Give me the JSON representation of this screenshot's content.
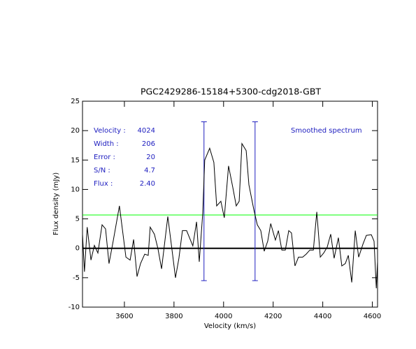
{
  "chart_data": {
    "type": "line",
    "title": "PGC2429286-15184+5300-cdg2018-GBT",
    "x_label": "Velocity (km/s)",
    "y_label": "Flux density (mJy)",
    "x": [
      3431,
      3439,
      3450,
      3465,
      3479,
      3493,
      3510,
      3524,
      3538,
      3555,
      3580,
      3606,
      3623,
      3637,
      3651,
      3665,
      3682,
      3696,
      3704,
      3721,
      3735,
      3750,
      3775,
      3789,
      3806,
      3820,
      3834,
      3851,
      3876,
      3891,
      3902,
      3916,
      3924,
      3944,
      3961,
      3972,
      3989,
      4003,
      4020,
      4037,
      4051,
      4063,
      4074,
      4091,
      4102,
      4122,
      4136,
      4150,
      4164,
      4178,
      4190,
      4209,
      4221,
      4235,
      4249,
      4263,
      4274,
      4288,
      4302,
      4319,
      4333,
      4348,
      4362,
      4376,
      4390,
      4404,
      4418,
      4432,
      4446,
      4463,
      4477,
      4491,
      4503,
      4517,
      4531,
      4545,
      4562,
      4576,
      4596,
      4607,
      4616,
      4621
    ],
    "series": [
      {
        "name": "Smoothed spectrum",
        "color": "#000000",
        "values": [
          2.4,
          -4,
          3.6,
          -2,
          0.5,
          -0.8,
          4,
          3.3,
          -2.6,
          1.3,
          7.2,
          -1.5,
          -2,
          1.5,
          -4.8,
          -2.6,
          -1,
          -1.2,
          3.6,
          2.4,
          0,
          -3.5,
          5.4,
          0.7,
          -5,
          -1.7,
          3,
          3,
          0.4,
          4.5,
          -2.3,
          6,
          15,
          17,
          14.6,
          7.2,
          8,
          5.2,
          14,
          10.4,
          7.2,
          8,
          17.8,
          16.6,
          10.8,
          6.6,
          4,
          3,
          -0.5,
          1.2,
          4.2,
          1.4,
          3,
          -0.3,
          -0.3,
          3,
          2.6,
          -3,
          -1.5,
          -1.5,
          -1,
          -0.3,
          -0.3,
          6.2,
          -1.5,
          -0.8,
          0.2,
          2.4,
          -1.7,
          1.8,
          -3,
          -2.6,
          -1.2,
          -5.8,
          3,
          -1.5,
          0.7,
          2.2,
          2.3,
          1.2,
          -6.8,
          -2.3
        ]
      }
    ],
    "hlines": [
      {
        "value": 0,
        "color": "#000000",
        "width": 2
      },
      {
        "value": 5.66,
        "color": "#00ff00",
        "width": 1
      }
    ],
    "vlines": [
      {
        "x": 3921,
        "ymin": -5.5,
        "ymax": 21.5,
        "color": "#2020c0"
      },
      {
        "x": 4127,
        "ymin": -5.5,
        "ymax": 21.5,
        "color": "#2020c0"
      }
    ],
    "annotations": [
      {
        "label": "Velocity :",
        "value": "4024"
      },
      {
        "label": "Width  :",
        "value": "206"
      },
      {
        "label": "Error  :",
        "value": "20"
      },
      {
        "label": "S/N    :",
        "value": "4.7"
      },
      {
        "label": "Flux   :",
        "value": "2.40"
      }
    ],
    "xlim": [
      3431,
      4621
    ],
    "ylim": [
      -10,
      25
    ],
    "xticks": [
      3600,
      3800,
      4000,
      4200,
      4400,
      4600
    ],
    "yticks": [
      -10,
      -5,
      0,
      5,
      10,
      15,
      20,
      25
    ]
  }
}
